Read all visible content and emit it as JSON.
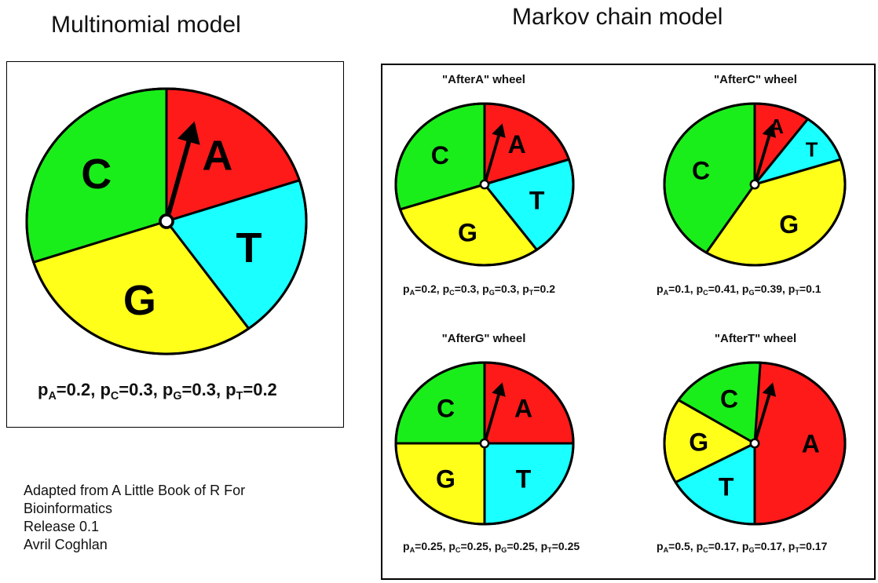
{
  "left_title": "Multinomial model",
  "right_title": "Markov chain model",
  "colors": {
    "A": "#ff1a1a",
    "C": "#1aee1a",
    "G": "#ffff1a",
    "T": "#1affff"
  },
  "credit": {
    "line1": "Adapted from A Little Book of R For",
    "line2": "Bioinformatics",
    "line3": "Release 0.1",
    "line4": "Avril Coghlan"
  },
  "main_wheel": {
    "probs": {
      "A": 0.2,
      "T": 0.2,
      "G": 0.3,
      "C": 0.3
    },
    "labels": {
      "A": "A",
      "C": "C",
      "G": "G",
      "T": "T"
    },
    "formula": {
      "pA": "0.2",
      "pC": "0.3",
      "pG": "0.3",
      "pT": "0.2"
    }
  },
  "wheels": {
    "afterA": {
      "title": "\"AfterA\" wheel",
      "probs": {
        "A": 0.2,
        "T": 0.2,
        "G": 0.3,
        "C": 0.3
      },
      "labels": {
        "A": "A",
        "C": "C",
        "G": "G",
        "T": "T"
      },
      "formula": {
        "pA": "0.2",
        "pC": "0.3",
        "pG": "0.3",
        "pT": "0.2"
      }
    },
    "afterC": {
      "title": "\"AfterC\" wheel",
      "probs": {
        "A": 0.1,
        "T": 0.1,
        "G": 0.39,
        "C": 0.41
      },
      "labels": {
        "A": "A",
        "C": "C",
        "G": "G",
        "T": "T"
      },
      "formula": {
        "pA": "0.1",
        "pC": "0.41",
        "pG": "0.39",
        "pT": "0.1"
      }
    },
    "afterG": {
      "title": "\"AfterG\" wheel",
      "probs": {
        "A": 0.25,
        "T": 0.25,
        "G": 0.25,
        "C": 0.25
      },
      "labels": {
        "A": "A",
        "C": "C",
        "G": "G",
        "T": "T"
      },
      "formula": {
        "pA": "0.25",
        "pC": "0.25",
        "pG": "0.25",
        "pT": "0.25"
      }
    },
    "afterT": {
      "title": "\"AfterT\" wheel",
      "probs": {
        "A": 0.5,
        "T": 0.17,
        "G": 0.17,
        "C": 0.17
      },
      "labels": {
        "A": "A",
        "C": "C",
        "G": "G",
        "T": "T"
      },
      "formula": {
        "pA": "0.5",
        "pC": "0.17",
        "pG": "0.17",
        "pT": "0.17"
      }
    }
  }
}
